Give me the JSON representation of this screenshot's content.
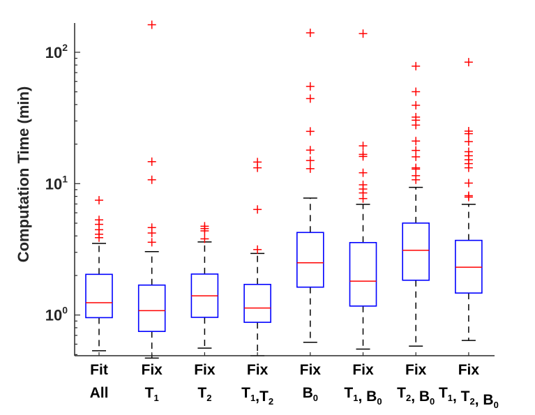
{
  "chart_data": {
    "type": "box",
    "title": "",
    "xlabel": "",
    "ylabel": "Computation Time (min)",
    "yscale": "log",
    "ylim": [
      0.49,
      167
    ],
    "yticks": [
      {
        "base": "10",
        "exp": "0",
        "value": 1
      },
      {
        "base": "10",
        "exp": "1",
        "value": 10
      },
      {
        "base": "10",
        "exp": "2",
        "value": 100
      }
    ],
    "grid": false,
    "colors": {
      "box": "#0000ff",
      "median": "#ff0000",
      "whisker": "#000000",
      "outlier": "#ff0000",
      "axis": "#262626"
    },
    "categories": [
      {
        "line1": [
          {
            "t": "Fit"
          }
        ],
        "line2": [
          {
            "t": "All"
          }
        ]
      },
      {
        "line1": [
          {
            "t": "Fix"
          }
        ],
        "line2": [
          {
            "t": "T"
          },
          {
            "sub": "1"
          }
        ]
      },
      {
        "line1": [
          {
            "t": "Fix"
          }
        ],
        "line2": [
          {
            "t": "T"
          },
          {
            "sub": "2"
          }
        ]
      },
      {
        "line1": [
          {
            "t": "Fix"
          }
        ],
        "line2": [
          {
            "t": "T"
          },
          {
            "sub": "1"
          },
          {
            "t": ",T"
          },
          {
            "sub": "2"
          }
        ]
      },
      {
        "line1": [
          {
            "t": "Fix"
          }
        ],
        "line2": [
          {
            "t": "B"
          },
          {
            "sub": "0"
          }
        ]
      },
      {
        "line1": [
          {
            "t": "Fix"
          }
        ],
        "line2": [
          {
            "t": "T"
          },
          {
            "sub": "1"
          },
          {
            "t": ", B"
          },
          {
            "sub": "0"
          }
        ]
      },
      {
        "line1": [
          {
            "t": "Fix"
          }
        ],
        "line2": [
          {
            "t": "T"
          },
          {
            "sub": "2"
          },
          {
            "t": ", B"
          },
          {
            "sub": "0"
          }
        ]
      },
      {
        "line1": [
          {
            "t": "Fix"
          }
        ],
        "line2": [
          {
            "t": "T"
          },
          {
            "sub": "1"
          },
          {
            "t": ", T"
          },
          {
            "sub": "2"
          },
          {
            "t": ", B"
          },
          {
            "sub": "0"
          }
        ]
      }
    ],
    "boxes": [
      {
        "whisker_low": 0.535,
        "q1": 0.955,
        "median": 1.24,
        "q3": 2.04,
        "whisker_high": 3.51,
        "outliers": [
          7.48,
          5.3,
          4.9,
          4.46,
          4.12,
          3.88
        ]
      },
      {
        "whisker_low": 0.47,
        "q1": 0.75,
        "median": 1.08,
        "q3": 1.69,
        "whisker_high": 3.04,
        "outliers": [
          162,
          14.7,
          10.7,
          4.63,
          4.21,
          3.58
        ]
      },
      {
        "whisker_low": 0.56,
        "q1": 0.96,
        "median": 1.4,
        "q3": 2.05,
        "whisker_high": 3.6,
        "outliers": [
          4.74,
          4.55,
          4.37,
          3.8
        ]
      },
      {
        "whisker_low": 0.49,
        "q1": 0.88,
        "median": 1.13,
        "q3": 1.71,
        "whisker_high": 2.94,
        "outliers": [
          14.6,
          13.2,
          6.36,
          3.15
        ]
      },
      {
        "whisker_low": 0.62,
        "q1": 1.63,
        "median": 2.5,
        "q3": 4.25,
        "whisker_high": 7.77,
        "outliers": [
          140.6,
          55,
          44.4,
          25,
          18,
          15,
          13
        ]
      },
      {
        "whisker_low": 0.55,
        "q1": 1.17,
        "median": 1.81,
        "q3": 3.56,
        "whisker_high": 6.95,
        "outliers": [
          138.7,
          19.4,
          16.7,
          16.1,
          12.1,
          9.8,
          9.1,
          8.5,
          7.7
        ]
      },
      {
        "whisker_low": 0.58,
        "q1": 1.84,
        "median": 3.11,
        "q3": 5.01,
        "whisker_high": 9.37,
        "outliers": [
          78.4,
          50.1,
          39.5,
          32.1,
          30.4,
          27.9,
          21.1,
          17.9,
          16,
          13.2,
          12.9,
          11.5,
          10.7
        ]
      },
      {
        "whisker_low": 0.64,
        "q1": 1.47,
        "median": 2.31,
        "q3": 3.7,
        "whisker_high": 6.95,
        "outliers": [
          84.1,
          25.1,
          24,
          20.9,
          17.5,
          16.3,
          15.2,
          14.2,
          13.2,
          10.1,
          8.1,
          7.9
        ]
      }
    ]
  }
}
